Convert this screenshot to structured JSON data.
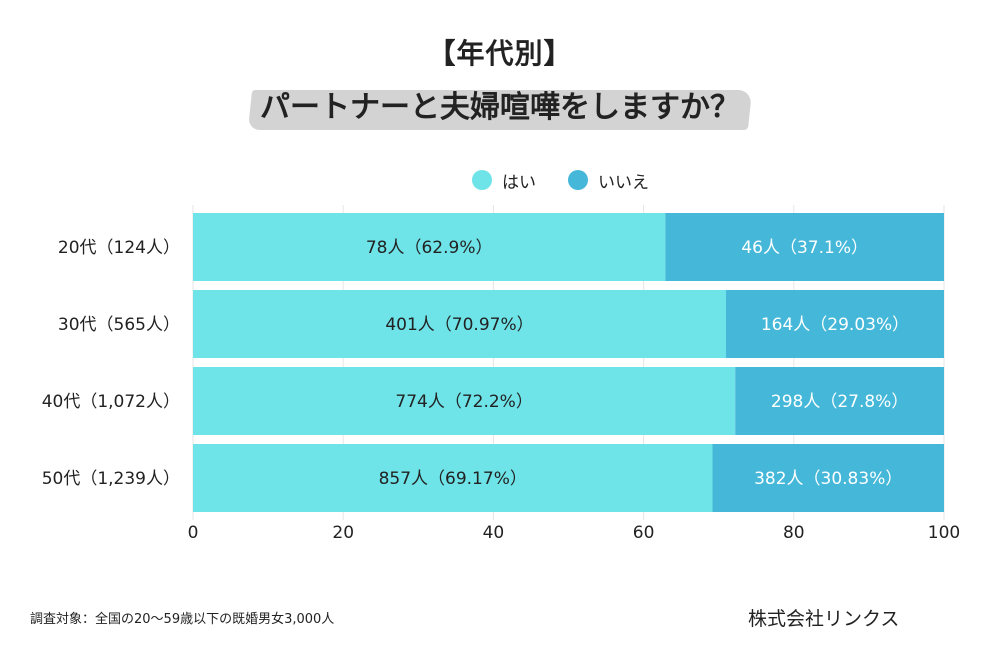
{
  "title": {
    "line1": "【年代別】",
    "line2": "パートナーと夫婦喧嘩をしますか？"
  },
  "colors": {
    "yes": "#6ee3e8",
    "no": "#45b8d9",
    "brush": "#d3d3d3"
  },
  "chart_data": {
    "type": "bar",
    "orientation": "horizontal",
    "stacked": true,
    "categories": [
      "20代（124人）",
      "30代（565人）",
      "40代（1,072人）",
      "50代（1,239人）"
    ],
    "series": [
      {
        "name": "はい",
        "values": [
          62.9,
          70.97,
          72.2,
          69.17
        ],
        "labels": [
          "78人（62.9%）",
          "401人（70.97%）",
          "774人（72.2%）",
          "857人（69.17%）"
        ]
      },
      {
        "name": "いいえ",
        "values": [
          37.1,
          29.03,
          27.8,
          30.83
        ],
        "labels": [
          "46人（37.1%）",
          "164人（29.03%）",
          "298人（27.8%）",
          "382人（30.83%）"
        ]
      }
    ],
    "xlim": [
      0,
      100
    ],
    "xticks": [
      "0",
      "20",
      "40",
      "60",
      "80",
      "100"
    ],
    "legend_position": "top-right"
  },
  "footnote": "調査対象：全国の20〜59歳以下の既婚男女3,000人",
  "company": "株式会社リンクス"
}
